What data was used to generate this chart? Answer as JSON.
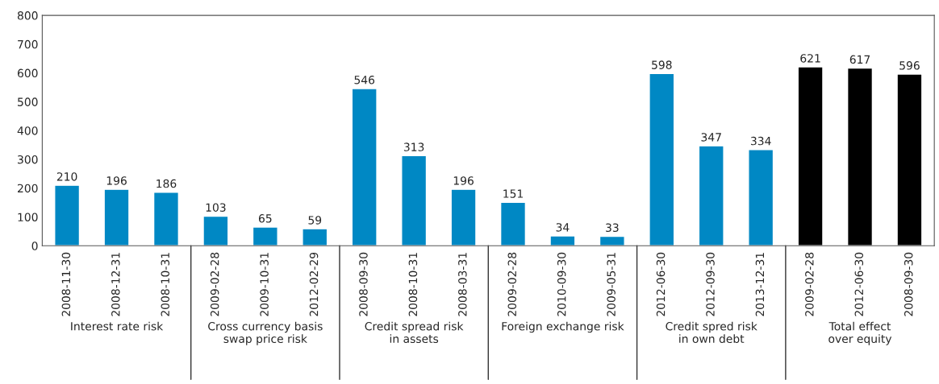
{
  "chart_data": {
    "type": "bar",
    "categories": [
      "2008-11-30",
      "2008-12-31",
      "2008-10-31",
      "2009-02-28",
      "2009-10-31",
      "2012-02-29",
      "2008-09-30",
      "2008-10-31",
      "2008-03-31",
      "2009-02-28",
      "2010-09-30",
      "2009-05-31",
      "2012-06-30",
      "2012-09-30",
      "2013-12-31",
      "2009-02-28",
      "2012-06-30",
      "2008-09-30"
    ],
    "values": [
      210,
      196,
      186,
      103,
      65,
      59,
      546,
      313,
      196,
      151,
      34,
      33,
      598,
      347,
      334,
      621,
      617,
      596
    ],
    "colors": [
      "#0088c4",
      "#0088c4",
      "#0088c4",
      "#0088c4",
      "#0088c4",
      "#0088c4",
      "#0088c4",
      "#0088c4",
      "#0088c4",
      "#0088c4",
      "#0088c4",
      "#0088c4",
      "#0088c4",
      "#0088c4",
      "#0088c4",
      "#000000",
      "#000000",
      "#000000"
    ],
    "data_labels": true,
    "ylim": [
      0,
      800
    ],
    "yticks": [
      0,
      100,
      200,
      300,
      400,
      500,
      600,
      700,
      800
    ],
    "grid": false,
    "annotations": [
      "Interest rate risk",
      "Cross currency basis\nswap price risk",
      "Credit spread risk\nin assets",
      "Foreign exchange risk",
      "Credit spred risk\nin own debt",
      "Total effect\nover equity"
    ]
  }
}
